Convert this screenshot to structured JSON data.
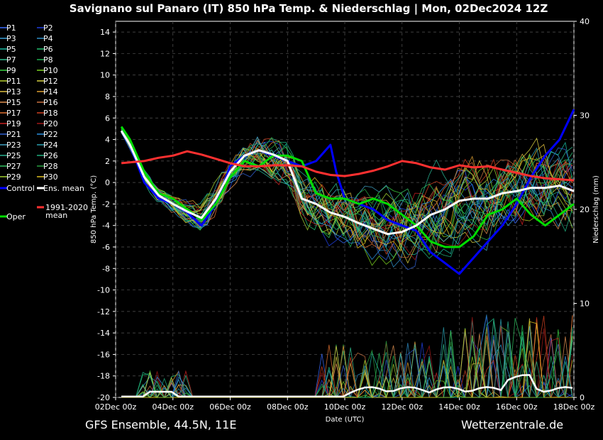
{
  "chart_data": {
    "type": "line",
    "title": "Savignano sul Panaro  (IT)  850 hPa Temp. & Niederschlag | Mon, 02Dec2024 12Z",
    "xlabel": "Date (UTC)",
    "ylabel": "850 hPa Temp. (°C)",
    "y2label": "Niederschlag (mm)",
    "footer_left": "GFS Ensemble, 44.5N, 11E",
    "footer_right": "Wetterzentrale.de",
    "x_ticks": [
      "02Dec 00z",
      "04Dec 00z",
      "06Dec 00z",
      "08Dec 00z",
      "10Dec 00z",
      "12Dec 00z",
      "14Dec 00z",
      "16Dec 00z",
      "18Dec 00z"
    ],
    "xlim_days": [
      0,
      16
    ],
    "ylim": [
      -20,
      15
    ],
    "y_ticks": [
      14,
      12,
      10,
      8,
      6,
      4,
      2,
      0,
      -2,
      -4,
      -6,
      -8,
      -10,
      -12,
      -14,
      -16,
      -18,
      -20
    ],
    "y2lim": [
      0,
      40
    ],
    "y2_ticks": [
      0,
      10,
      20,
      30,
      40
    ],
    "grid": true,
    "legend_placement": "left",
    "legend": [
      {
        "name": "P1",
        "color": "#3a6cff"
      },
      {
        "name": "P2",
        "color": "#1f3fe0"
      },
      {
        "name": "P3",
        "color": "#3aa0d8"
      },
      {
        "name": "P4",
        "color": "#2f8fc8"
      },
      {
        "name": "P5",
        "color": "#19b8a0"
      },
      {
        "name": "P6",
        "color": "#22c070"
      },
      {
        "name": "P7",
        "color": "#2fc090"
      },
      {
        "name": "P8",
        "color": "#20b050"
      },
      {
        "name": "P9",
        "color": "#39d040"
      },
      {
        "name": "P10",
        "color": "#7ad020"
      },
      {
        "name": "P11",
        "color": "#b8d030"
      },
      {
        "name": "P12",
        "color": "#d6d040"
      },
      {
        "name": "P13",
        "color": "#e0c040"
      },
      {
        "name": "P14",
        "color": "#e0a030"
      },
      {
        "name": "P15",
        "color": "#e09050"
      },
      {
        "name": "P16",
        "color": "#c87040"
      },
      {
        "name": "P17",
        "color": "#e07030"
      },
      {
        "name": "P18",
        "color": "#d04020"
      },
      {
        "name": "P19",
        "color": "#c82020"
      },
      {
        "name": "P20",
        "color": "#a01818"
      },
      {
        "name": "P21",
        "color": "#3060d0"
      },
      {
        "name": "P22",
        "color": "#2a90e0"
      },
      {
        "name": "P23",
        "color": "#40a0c0"
      },
      {
        "name": "P24",
        "color": "#2aa0b0"
      },
      {
        "name": "P25",
        "color": "#28b090"
      },
      {
        "name": "P26",
        "color": "#1fb080"
      },
      {
        "name": "P27",
        "color": "#30c060"
      },
      {
        "name": "P28",
        "color": "#28a040"
      },
      {
        "name": "P29",
        "color": "#a0d030"
      },
      {
        "name": "P30",
        "color": "#e0c020"
      },
      {
        "name": "Control",
        "color": "#0000ff"
      },
      {
        "name": "Ens. mean",
        "color": "#ffffff"
      },
      {
        "name": "Oper",
        "color": "#00dd00"
      },
      {
        "name": "1991-2020 mean",
        "color": "#ff3030"
      }
    ],
    "series": [
      {
        "name": "Control",
        "color": "#0000ff",
        "width": 3,
        "x": [
          0.2,
          0.5,
          1,
          1.5,
          2,
          2.5,
          3,
          3.5,
          4,
          4.5,
          5,
          5.5,
          6,
          6.5,
          7,
          7.5,
          7.7,
          8,
          8.5,
          9,
          9.5,
          10,
          10.5,
          11,
          11.5,
          12,
          12.5,
          13,
          13.5,
          14,
          14.5,
          15,
          15.5,
          16
        ],
        "y": [
          4.8,
          3.5,
          0,
          -1.5,
          -2,
          -2.8,
          -4,
          -2,
          1.5,
          2.5,
          3,
          2.5,
          2,
          1.5,
          2,
          3.5,
          1,
          -1.5,
          -2,
          -2.5,
          -3.5,
          -4,
          -4.5,
          -6.5,
          -7.5,
          -8.5,
          -7,
          -5.5,
          -4,
          -2,
          0.5,
          2.5,
          4,
          6.8
        ]
      },
      {
        "name": "Oper",
        "color": "#00dd00",
        "width": 3,
        "x": [
          0.2,
          0.5,
          1,
          1.5,
          2,
          2.5,
          3,
          3.5,
          4,
          4.5,
          5,
          5.5,
          6,
          6.5,
          7,
          7.5,
          8,
          8.5,
          9,
          9.5,
          10,
          10.5,
          11,
          11.5,
          12,
          12.5,
          13,
          13.5,
          14,
          14.5,
          15,
          15.5,
          16
        ],
        "y": [
          5.2,
          4,
          1,
          -1,
          -1.5,
          -2.5,
          -3.5,
          -2,
          0.5,
          2,
          1.5,
          2.5,
          2.5,
          2,
          -1,
          -1.5,
          -1.5,
          -2,
          -1.5,
          -2,
          -3,
          -4,
          -5.5,
          -6,
          -6,
          -5,
          -3,
          -2.5,
          -1.5,
          -3,
          -4,
          -3,
          -2
        ]
      },
      {
        "name": "Ens. mean",
        "color": "#ffffff",
        "width": 3,
        "x": [
          0.2,
          0.5,
          1,
          1.5,
          2,
          2.5,
          3,
          3.5,
          4,
          4.5,
          5,
          5.5,
          6,
          6.5,
          7,
          7.5,
          8,
          8.5,
          9,
          9.5,
          10,
          10.5,
          11,
          11.5,
          12,
          12.5,
          13,
          13.5,
          14,
          14.5,
          15,
          15.5,
          16
        ],
        "y": [
          4.8,
          3.5,
          0.5,
          -1.2,
          -2,
          -2.7,
          -3.3,
          -1.5,
          1,
          2.5,
          3,
          2.6,
          2,
          -1.5,
          -2,
          -2.8,
          -3.2,
          -3.8,
          -4.3,
          -4.8,
          -4.6,
          -4,
          -3,
          -2.5,
          -1.7,
          -1.5,
          -1.5,
          -1,
          -0.8,
          -0.5,
          -0.5,
          -0.3,
          -0.8
        ]
      },
      {
        "name": "1991-2020 mean",
        "color": "#ff3030",
        "width": 3,
        "x": [
          0.2,
          1,
          1.5,
          2,
          2.5,
          3,
          3.5,
          4,
          4.5,
          5,
          5.5,
          6,
          6.5,
          7,
          7.5,
          8,
          8.5,
          9,
          9.5,
          10,
          10.5,
          11,
          11.5,
          12,
          12.5,
          13,
          13.5,
          14,
          14.5,
          15,
          15.5,
          16
        ],
        "y": [
          1.8,
          2,
          2.3,
          2.5,
          2.9,
          2.6,
          2.2,
          1.8,
          1.5,
          1.5,
          1.6,
          1.6,
          1.5,
          1,
          0.7,
          0.6,
          0.8,
          1.1,
          1.5,
          2,
          1.8,
          1.4,
          1.2,
          1.6,
          1.4,
          1.5,
          1.2,
          0.9,
          0.6,
          0.4,
          0.3,
          0.2
        ]
      }
    ]
  }
}
